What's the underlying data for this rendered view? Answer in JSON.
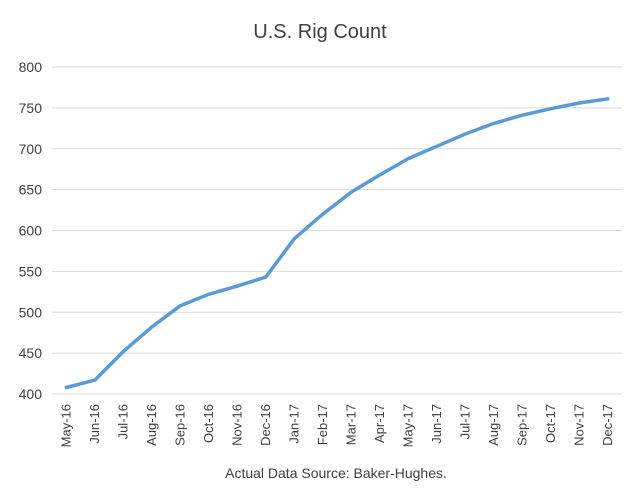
{
  "chart_data": {
    "type": "line",
    "title": "U.S. Rig Count",
    "xlabel": "",
    "ylabel": "",
    "categories": [
      "May-16",
      "Jun-16",
      "Jul-16",
      "Aug-16",
      "Sep-16",
      "Oct-16",
      "Nov-16",
      "Dec-16",
      "Jan-17",
      "Feb-17",
      "Mar-17",
      "Apr-17",
      "May-17",
      "Jun-17",
      "Jul-17",
      "Aug-17",
      "Sep-17",
      "Oct-17",
      "Nov-17",
      "Dec-17"
    ],
    "series": [
      {
        "name": "",
        "values": [
          408,
          417,
          452,
          482,
          508,
          522,
          532,
          543,
          590,
          620,
          647,
          668,
          688,
          703,
          718,
          731,
          741,
          749,
          756,
          761
        ],
        "color": "#5b9bd5"
      }
    ],
    "ylim": [
      400,
      800
    ],
    "yticks": [
      400,
      450,
      500,
      550,
      600,
      650,
      700,
      750,
      800
    ],
    "grid": true,
    "legend": "none",
    "annotation": "Actual Data Source: Baker-Hughes."
  }
}
